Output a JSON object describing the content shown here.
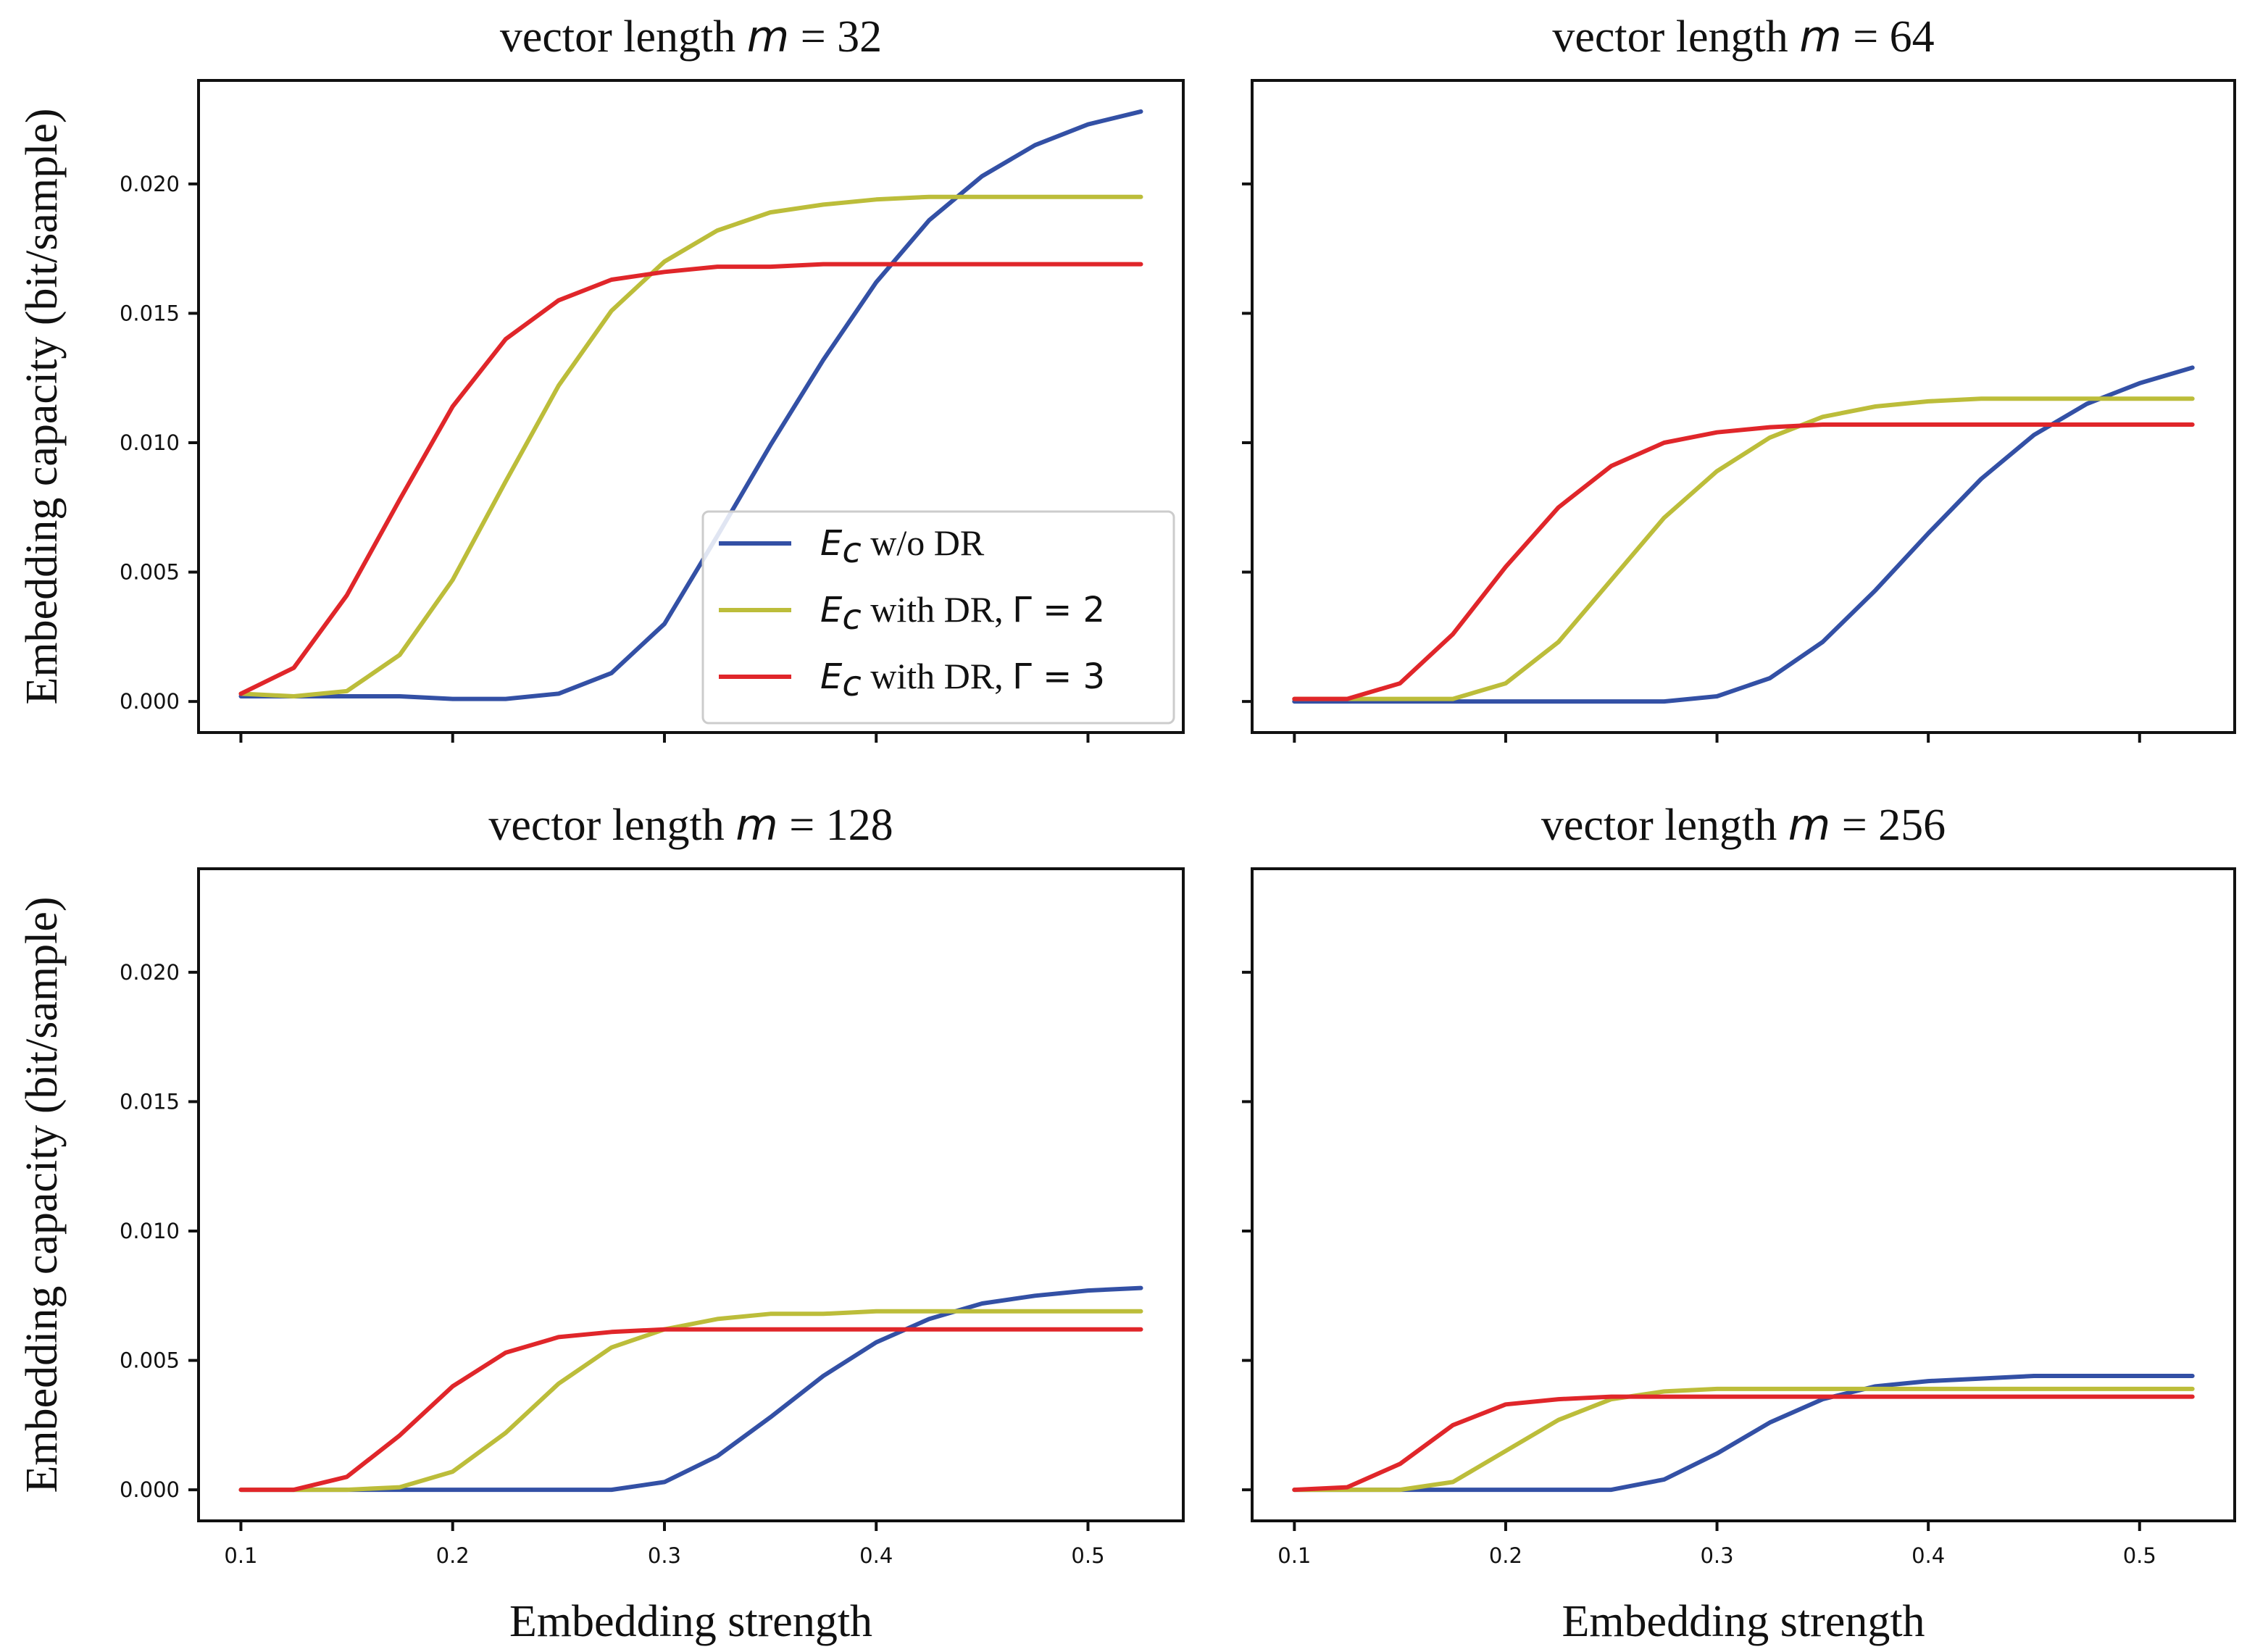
{
  "figure": {
    "xlabel": "Embedding strength",
    "ylabel": "Embedding capacity (bit/sample)"
  },
  "legend": {
    "location": "lower right of top-left panel",
    "entries": [
      {
        "math": "E",
        "sub": "c",
        "text": " w/o DR",
        "sym": "",
        "color": "#3350a5"
      },
      {
        "math": "E",
        "sub": "c",
        "text": " with DR, ",
        "sym": "Γ = 2",
        "color": "#bcbd3a"
      },
      {
        "math": "E",
        "sub": "c",
        "text": " with DR, ",
        "sym": "Γ = 3",
        "color": "#e0262a"
      }
    ]
  },
  "chart_data": [
    {
      "type": "line",
      "title_prefix": "vector length ",
      "title_var": "m",
      "title_value": " = 32",
      "xlabel": "Embedding strength",
      "ylabel": "Embedding capacity (bit/sample)",
      "xlim": [
        0.08,
        0.545
      ],
      "ylim": [
        -0.0012,
        0.024
      ],
      "xticks": [
        "0.1",
        "0.2",
        "0.3",
        "0.4",
        "0.5"
      ],
      "yticks": [
        "0.000",
        "0.005",
        "0.010",
        "0.015",
        "0.020"
      ],
      "x": [
        0.1,
        0.125,
        0.15,
        0.175,
        0.2,
        0.225,
        0.25,
        0.275,
        0.3,
        0.325,
        0.35,
        0.375,
        0.4,
        0.425,
        0.45,
        0.475,
        0.5,
        0.525
      ],
      "series": [
        {
          "name": "Ec w/o DR",
          "color": "#3350a5",
          "values": [
            0.0002,
            0.0002,
            0.0002,
            0.0002,
            0.0001,
            0.0001,
            0.0003,
            0.0011,
            0.003,
            0.0064,
            0.0099,
            0.0132,
            0.0162,
            0.0186,
            0.0203,
            0.0215,
            0.0223,
            0.0228
          ]
        },
        {
          "name": "Ec with DR, Γ=2",
          "color": "#bcbd3a",
          "values": [
            0.0003,
            0.0002,
            0.0004,
            0.0018,
            0.0047,
            0.0085,
            0.0122,
            0.0151,
            0.017,
            0.0182,
            0.0189,
            0.0192,
            0.0194,
            0.0195,
            0.0195,
            0.0195,
            0.0195,
            0.0195
          ]
        },
        {
          "name": "Ec with DR, Γ=3",
          "color": "#e0262a",
          "values": [
            0.0003,
            0.0013,
            0.0041,
            0.0078,
            0.0114,
            0.014,
            0.0155,
            0.0163,
            0.0166,
            0.0168,
            0.0168,
            0.0169,
            0.0169,
            0.0169,
            0.0169,
            0.0169,
            0.0169,
            0.0169
          ]
        }
      ]
    },
    {
      "type": "line",
      "title_prefix": "vector length ",
      "title_var": "m",
      "title_value": " = 64",
      "xlabel": "Embedding strength",
      "ylabel": "Embedding capacity (bit/sample)",
      "xlim": [
        0.08,
        0.545
      ],
      "ylim": [
        -0.0012,
        0.024
      ],
      "xticks": [
        "0.1",
        "0.2",
        "0.3",
        "0.4",
        "0.5"
      ],
      "yticks": [
        "0.000",
        "0.005",
        "0.010",
        "0.015",
        "0.020"
      ],
      "x": [
        0.1,
        0.125,
        0.15,
        0.175,
        0.2,
        0.225,
        0.25,
        0.275,
        0.3,
        0.325,
        0.35,
        0.375,
        0.4,
        0.425,
        0.45,
        0.475,
        0.5,
        0.525
      ],
      "series": [
        {
          "name": "Ec w/o DR",
          "color": "#3350a5",
          "values": [
            0.0,
            0.0,
            0.0,
            0.0,
            0.0,
            0.0,
            0.0,
            0.0,
            0.0002,
            0.0009,
            0.0023,
            0.0043,
            0.0065,
            0.0086,
            0.0103,
            0.0115,
            0.0123,
            0.0129
          ]
        },
        {
          "name": "Ec with DR, Γ=2",
          "color": "#bcbd3a",
          "values": [
            0.0001,
            0.0001,
            0.0001,
            0.0001,
            0.0007,
            0.0023,
            0.0047,
            0.0071,
            0.0089,
            0.0102,
            0.011,
            0.0114,
            0.0116,
            0.0117,
            0.0117,
            0.0117,
            0.0117,
            0.0117
          ]
        },
        {
          "name": "Ec with DR, Γ=3",
          "color": "#e0262a",
          "values": [
            0.0001,
            0.0001,
            0.0007,
            0.0026,
            0.0052,
            0.0075,
            0.0091,
            0.01,
            0.0104,
            0.0106,
            0.0107,
            0.0107,
            0.0107,
            0.0107,
            0.0107,
            0.0107,
            0.0107,
            0.0107
          ]
        }
      ]
    },
    {
      "type": "line",
      "title_prefix": "vector length ",
      "title_var": "m",
      "title_value": " = 128",
      "xlabel": "Embedding strength",
      "ylabel": "Embedding capacity (bit/sample)",
      "xlim": [
        0.08,
        0.545
      ],
      "ylim": [
        -0.0012,
        0.024
      ],
      "xticks": [
        "0.1",
        "0.2",
        "0.3",
        "0.4",
        "0.5"
      ],
      "yticks": [
        "0.000",
        "0.005",
        "0.010",
        "0.015",
        "0.020"
      ],
      "x": [
        0.1,
        0.125,
        0.15,
        0.175,
        0.2,
        0.225,
        0.25,
        0.275,
        0.3,
        0.325,
        0.35,
        0.375,
        0.4,
        0.425,
        0.45,
        0.475,
        0.5,
        0.525
      ],
      "series": [
        {
          "name": "Ec w/o DR",
          "color": "#3350a5",
          "values": [
            0.0,
            0.0,
            0.0,
            0.0,
            0.0,
            0.0,
            0.0,
            0.0,
            0.0003,
            0.0013,
            0.0028,
            0.0044,
            0.0057,
            0.0066,
            0.0072,
            0.0075,
            0.0077,
            0.0078
          ]
        },
        {
          "name": "Ec with DR, Γ=2",
          "color": "#bcbd3a",
          "values": [
            0.0,
            0.0,
            0.0,
            0.0001,
            0.0007,
            0.0022,
            0.0041,
            0.0055,
            0.0062,
            0.0066,
            0.0068,
            0.0068,
            0.0069,
            0.0069,
            0.0069,
            0.0069,
            0.0069,
            0.0069
          ]
        },
        {
          "name": "Ec with DR, Γ=3",
          "color": "#e0262a",
          "values": [
            0.0,
            0.0,
            0.0005,
            0.0021,
            0.004,
            0.0053,
            0.0059,
            0.0061,
            0.0062,
            0.0062,
            0.0062,
            0.0062,
            0.0062,
            0.0062,
            0.0062,
            0.0062,
            0.0062,
            0.0062
          ]
        }
      ]
    },
    {
      "type": "line",
      "title_prefix": "vector length ",
      "title_var": "m",
      "title_value": " = 256",
      "xlabel": "Embedding strength",
      "ylabel": "Embedding capacity (bit/sample)",
      "xlim": [
        0.08,
        0.545
      ],
      "ylim": [
        -0.0012,
        0.024
      ],
      "xticks": [
        "0.1",
        "0.2",
        "0.3",
        "0.4",
        "0.5"
      ],
      "yticks": [
        "0.000",
        "0.005",
        "0.010",
        "0.015",
        "0.020"
      ],
      "x": [
        0.1,
        0.125,
        0.15,
        0.175,
        0.2,
        0.225,
        0.25,
        0.275,
        0.3,
        0.325,
        0.35,
        0.375,
        0.4,
        0.425,
        0.45,
        0.475,
        0.5,
        0.525
      ],
      "series": [
        {
          "name": "Ec w/o DR",
          "color": "#3350a5",
          "values": [
            0.0,
            0.0,
            0.0,
            0.0,
            0.0,
            0.0,
            0.0,
            0.0004,
            0.0014,
            0.0026,
            0.0035,
            0.004,
            0.0042,
            0.0043,
            0.0044,
            0.0044,
            0.0044,
            0.0044
          ]
        },
        {
          "name": "Ec with DR, Γ=2",
          "color": "#bcbd3a",
          "values": [
            0.0,
            0.0,
            0.0,
            0.0003,
            0.0015,
            0.0027,
            0.0035,
            0.0038,
            0.0039,
            0.0039,
            0.0039,
            0.0039,
            0.0039,
            0.0039,
            0.0039,
            0.0039,
            0.0039,
            0.0039
          ]
        },
        {
          "name": "Ec with DR, Γ=3",
          "color": "#e0262a",
          "values": [
            0.0,
            0.0001,
            0.001,
            0.0025,
            0.0033,
            0.0035,
            0.0036,
            0.0036,
            0.0036,
            0.0036,
            0.0036,
            0.0036,
            0.0036,
            0.0036,
            0.0036,
            0.0036,
            0.0036,
            0.0036
          ]
        }
      ]
    }
  ]
}
